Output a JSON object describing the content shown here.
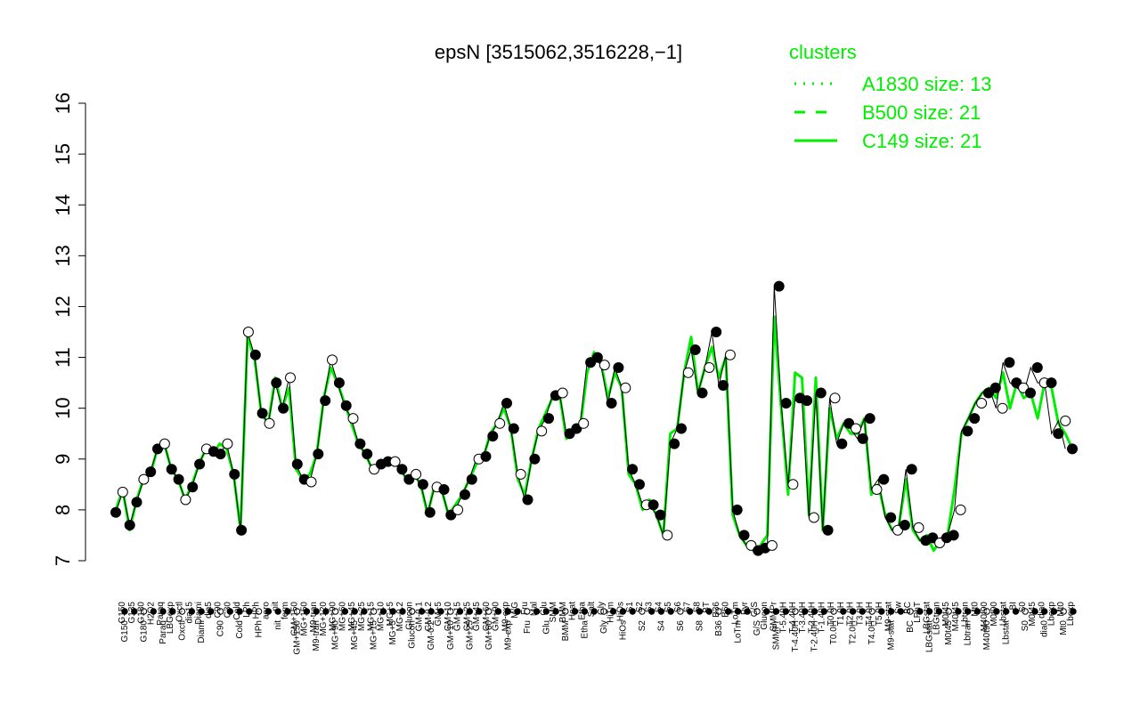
{
  "chart_data": {
    "type": "line",
    "title": "epsN [3515062,3516228,−1]",
    "xlabel": "",
    "ylabel": "",
    "ylim": [
      7,
      16
    ],
    "yticks": [
      7,
      8,
      9,
      10,
      11,
      12,
      13,
      14,
      15,
      16
    ],
    "grid": false,
    "legend": {
      "title": "clusters",
      "placement": "top-right",
      "entries": [
        {
          "label": "A1830 size: 13",
          "style": "dotted"
        },
        {
          "label": "B500 size: 21",
          "style": "dashed"
        },
        {
          "label": "C149 size: 21",
          "style": "solid"
        }
      ]
    },
    "colors": {
      "legend": "#00ee00",
      "line": "#00ee00",
      "points": "#000000"
    },
    "x_tick_labels": [
      "G150",
      "G135",
      "G180",
      "H2O2",
      "Paraq",
      "LBGexp",
      "Oxctl",
      "dia15",
      "Diami",
      "dia5",
      "C90",
      "C30",
      "Cold",
      "LPh",
      "HPh",
      "aero",
      "nit",
      "ferm",
      "GM+150",
      "MG+150",
      "M9-tran",
      "MG+120",
      "MG+90",
      "MG+60",
      "MG+45",
      "MG+25",
      "MG+15",
      "MG+10",
      "MG+5",
      "MG-0.2",
      "Glucon",
      "GM-0.1",
      "GM-0.2",
      "GM+5",
      "GM+10",
      "GM+15",
      "GM+25",
      "GM+45",
      "GM+60",
      "GM+90",
      "M9-exp",
      "M/G",
      "Fru",
      "Mal",
      "Glu",
      "SMM",
      "BMM",
      "Heat",
      "Etha",
      "Salt",
      "Gly",
      "HiTm",
      "HiOs",
      "S1",
      "S2",
      "S3",
      "S4",
      "S5",
      "S6",
      "S7",
      "S8",
      "BT",
      "B36",
      "B60",
      "LoTm",
      "Pyr",
      "G/S",
      "Glucon",
      "SMMPr",
      "T-5.40H",
      "T-4.40H",
      "T-3.40H",
      "T-2.40H",
      "T-1.40H",
      "T0.0H",
      "T1.0H",
      "T2.0H",
      "T3.0H",
      "T4.0H",
      "T5.0H",
      "M9-stat",
      "Sw",
      "BC",
      "LPhT",
      "LBGstat",
      "LBGtran",
      "M0t45",
      "M40t45",
      "Lbtran",
      "Mt0",
      "M40t90",
      "M0t90",
      "Lbstat",
      "BI",
      "S0",
      "M0t45",
      "dia0",
      "Lbexp",
      "Mt0",
      "Lbexp"
    ],
    "tick_label_font_px": 10,
    "series": [
      {
        "name": "C149 size: 21",
        "style": "solid",
        "values": [
          8.0,
          8.4,
          7.6,
          8.2,
          8.6,
          8.7,
          9.2,
          9.3,
          8.8,
          8.6,
          8.2,
          8.5,
          8.9,
          9.2,
          9.1,
          9.3,
          9.2,
          8.7,
          7.6,
          11.4,
          11.0,
          9.9,
          9.7,
          10.6,
          10.0,
          10.4,
          8.8,
          8.6,
          8.7,
          9.1,
          10.2,
          10.8,
          10.5,
          10.1,
          9.7,
          9.3,
          9.1,
          8.8,
          8.9,
          8.9,
          9.0,
          8.8,
          8.6,
          8.7,
          8.5,
          7.9,
          8.5,
          8.4,
          7.9,
          8.1,
          8.3,
          8.6,
          8.9,
          9.0,
          9.5,
          9.7,
          10.0,
          9.6,
          8.6,
          8.3,
          9.0,
          9.6,
          9.9,
          10.2,
          10.3,
          9.4,
          9.5,
          9.6,
          10.7,
          11.1,
          10.9,
          10.2,
          10.7,
          10.4,
          8.7,
          8.5,
          8.0,
          8.2,
          7.9,
          7.5,
          9.5,
          9.6,
          10.7,
          11.4,
          10.3,
          10.8,
          11.2,
          10.6,
          11.0,
          7.9,
          7.5,
          7.3,
          7.2,
          7.3,
          7.5,
          11.8,
          10.0,
          8.3,
          10.7,
          10.6,
          7.9,
          10.6,
          7.6,
          10.0,
          9.4,
          9.7,
          9.5,
          9.5,
          9.8,
          8.3,
          8.5,
          7.9,
          7.6,
          7.7,
          8.6,
          7.6,
          7.4,
          7.5,
          7.2,
          7.4,
          7.5,
          8.4,
          9.5,
          9.8,
          10.1,
          10.3,
          10.4,
          10.2,
          10.7,
          10.0,
          10.5,
          10.2,
          10.3,
          9.8,
          10.5,
          10.4,
          9.7,
          9.5,
          9.2
        ]
      }
    ],
    "points_x": [
      0,
      2,
      4,
      6,
      8,
      10,
      12,
      14,
      16,
      18,
      20,
      22,
      24,
      26,
      28,
      30,
      32,
      34,
      36,
      38,
      40,
      42,
      44,
      46,
      48,
      50,
      52,
      54,
      56,
      58,
      60,
      62,
      64,
      66,
      68,
      70,
      72,
      74,
      76,
      78,
      80,
      82,
      84,
      86,
      88,
      90,
      92,
      94,
      96,
      98,
      100,
      102,
      104,
      106,
      108,
      110,
      112,
      114,
      116,
      118,
      120,
      122,
      124,
      126,
      128,
      130,
      132,
      134,
      136,
      138,
      140,
      142,
      144,
      146,
      148,
      150,
      152,
      154,
      156,
      158,
      160,
      162,
      164,
      166,
      168,
      170,
      172,
      174,
      176,
      178,
      180,
      182,
      184,
      186,
      188,
      190,
      192,
      194,
      196,
      198,
      200,
      202,
      204,
      206,
      208,
      210,
      212,
      214,
      216,
      218,
      220,
      222,
      224,
      226,
      228,
      230,
      232,
      234,
      236,
      238,
      240,
      242,
      244,
      246,
      248,
      250,
      252,
      254,
      256,
      258,
      260,
      262,
      264,
      266,
      268,
      270,
      272,
      274,
      276
    ],
    "points_y": [
      7.95,
      8.35,
      7.7,
      8.15,
      8.6,
      8.75,
      9.2,
      9.3,
      8.8,
      8.6,
      8.2,
      8.45,
      8.9,
      9.2,
      9.15,
      9.1,
      9.3,
      8.7,
      7.6,
      11.5,
      11.05,
      9.9,
      9.7,
      10.5,
      10.0,
      10.6,
      8.9,
      8.6,
      8.55,
      9.1,
      10.15,
      10.95,
      10.5,
      10.05,
      9.8,
      9.3,
      9.1,
      8.8,
      8.9,
      8.95,
      8.95,
      8.8,
      8.6,
      8.7,
      8.5,
      7.95,
      8.45,
      8.4,
      7.9,
      8.0,
      8.3,
      8.6,
      9.0,
      9.05,
      9.45,
      9.7,
      10.1,
      9.6,
      8.7,
      8.2,
      9.0,
      9.55,
      9.8,
      10.25,
      10.3,
      9.5,
      9.6,
      9.7,
      10.9,
      11.0,
      10.85,
      10.1,
      10.8,
      10.4,
      8.8,
      8.5,
      8.1,
      8.1,
      7.9,
      7.5,
      9.3,
      9.6,
      10.7,
      11.15,
      10.3,
      10.8,
      11.5,
      10.45,
      11.05,
      8.0,
      7.5,
      7.3,
      7.2,
      7.25,
      7.3,
      12.4,
      10.1,
      8.5,
      10.2,
      10.15,
      7.85,
      10.3,
      7.6,
      10.2,
      9.3,
      9.7,
      9.6,
      9.4,
      9.8,
      8.4,
      8.6,
      7.85,
      7.6,
      7.7,
      8.8,
      7.65,
      7.4,
      7.45,
      7.35,
      7.45,
      7.5,
      8.0,
      9.55,
      9.8,
      10.1,
      10.3,
      10.4,
      10.0,
      10.9,
      10.5,
      10.4,
      10.3,
      10.8,
      10.5,
      10.5,
      9.5,
      9.75,
      9.2
    ],
    "x_count": 277
  }
}
